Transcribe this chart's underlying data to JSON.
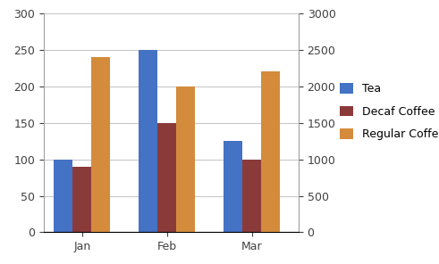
{
  "categories": [
    "Jan",
    "Feb",
    "Mar"
  ],
  "tea": [
    100,
    250,
    125
  ],
  "decaf_coffee": [
    90,
    150,
    100
  ],
  "regular_coffee": [
    2400,
    2000,
    2200
  ],
  "tea_color": "#4472C4",
  "decaf_color": "#8B3A3A",
  "regular_color": "#D48B3C",
  "left_ylim": [
    0,
    300
  ],
  "right_ylim": [
    0,
    3000
  ],
  "left_yticks": [
    0,
    50,
    100,
    150,
    200,
    250,
    300
  ],
  "right_yticks": [
    0,
    500,
    1000,
    1500,
    2000,
    2500,
    3000
  ],
  "legend_labels": [
    "Tea",
    "Decaf Coffee",
    "Regular Coffee"
  ],
  "background_color": "#FFFFFF",
  "grid_color": "#C8C8C8",
  "bar_width": 0.22,
  "figsize": [
    4.91,
    2.96
  ],
  "dpi": 100
}
